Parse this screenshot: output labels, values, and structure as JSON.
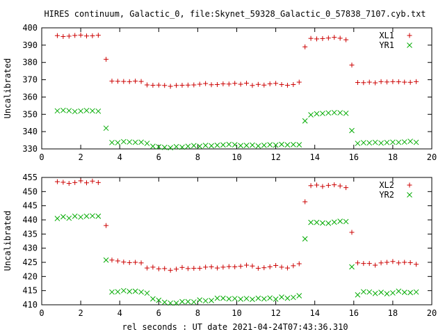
{
  "title": "HIRES continuum, Galactic_0, file:Skynet_59328_Galactic_0_57838_7107.cyb.txt",
  "xlabel": "rel seconds : UT date 2021-04-24T07:43:36.310",
  "chart_data": [
    {
      "type": "scatter",
      "ylabel": "Uncalibrated",
      "xlim": [
        0,
        20
      ],
      "ylim": [
        330,
        400
      ],
      "xticks": [
        0,
        2,
        4,
        6,
        8,
        10,
        12,
        14,
        16,
        18,
        20
      ],
      "yticks": [
        330,
        340,
        350,
        360,
        370,
        380,
        390,
        400
      ],
      "legend_position": "top-right",
      "x": [
        0.8,
        1.1,
        1.4,
        1.7,
        2.0,
        2.3,
        2.6,
        2.9,
        3.3,
        3.6,
        3.9,
        4.2,
        4.5,
        4.8,
        5.1,
        5.4,
        5.7,
        6.0,
        6.3,
        6.6,
        6.9,
        7.2,
        7.5,
        7.8,
        8.1,
        8.4,
        8.7,
        9.0,
        9.3,
        9.6,
        9.9,
        10.2,
        10.5,
        10.8,
        11.1,
        11.4,
        11.7,
        12.0,
        12.3,
        12.6,
        12.9,
        13.2,
        13.5,
        13.8,
        14.1,
        14.4,
        14.7,
        15.0,
        15.3,
        15.6,
        15.9,
        16.2,
        16.5,
        16.8,
        17.1,
        17.4,
        17.7,
        18.0,
        18.3,
        18.6,
        18.9,
        19.2
      ],
      "series": [
        {
          "name": "XL1",
          "color": "#cc0000",
          "marker": "plus",
          "values": [
            395.5,
            395.0,
            395.2,
            395.6,
            395.8,
            395.3,
            395.4,
            395.7,
            381.8,
            369.2,
            369.1,
            369.0,
            368.9,
            369.2,
            369.0,
            367.0,
            366.8,
            366.9,
            366.7,
            366.2,
            366.7,
            366.8,
            366.9,
            367.0,
            367.4,
            367.8,
            367.1,
            367.2,
            367.6,
            367.5,
            367.9,
            367.4,
            368.0,
            366.7,
            367.3,
            366.9,
            367.6,
            367.9,
            367.2,
            366.8,
            367.2,
            368.6,
            389.0,
            393.9,
            393.6,
            393.8,
            394.1,
            394.5,
            394.0,
            393.1,
            378.5,
            368.4,
            368.3,
            368.6,
            368.2,
            368.9,
            368.7,
            368.9,
            368.8,
            368.6,
            368.5,
            368.9
          ]
        },
        {
          "name": "YR1",
          "color": "#00aa00",
          "marker": "x",
          "values": [
            352.0,
            352.3,
            352.1,
            351.6,
            351.9,
            352.2,
            352.0,
            351.8,
            342.0,
            333.7,
            333.6,
            334.2,
            334.0,
            333.8,
            333.9,
            333.2,
            331.5,
            331.2,
            330.9,
            330.7,
            331.3,
            331.0,
            331.5,
            331.9,
            331.5,
            332.0,
            331.8,
            332.1,
            332.3,
            332.6,
            332.4,
            331.9,
            332.0,
            332.2,
            331.7,
            332.1,
            332.4,
            332.2,
            332.6,
            332.3,
            332.5,
            332.4,
            346.2,
            349.7,
            350.3,
            350.5,
            350.8,
            351.0,
            350.9,
            350.6,
            340.6,
            333.2,
            333.6,
            333.5,
            333.8,
            333.4,
            333.7,
            333.9,
            333.8,
            334.0,
            334.4,
            333.8
          ]
        }
      ]
    },
    {
      "type": "scatter",
      "ylabel": "Uncalibrated",
      "xlim": [
        0,
        20
      ],
      "ylim": [
        410,
        455
      ],
      "xticks": [
        0,
        2,
        4,
        6,
        8,
        10,
        12,
        14,
        16,
        18,
        20
      ],
      "yticks": [
        410,
        415,
        420,
        425,
        430,
        435,
        440,
        445,
        450,
        455
      ],
      "legend_position": "top-right",
      "x": [
        0.8,
        1.1,
        1.4,
        1.7,
        2.0,
        2.3,
        2.6,
        2.9,
        3.3,
        3.6,
        3.9,
        4.2,
        4.5,
        4.8,
        5.1,
        5.4,
        5.7,
        6.0,
        6.3,
        6.6,
        6.9,
        7.2,
        7.5,
        7.8,
        8.1,
        8.4,
        8.7,
        9.0,
        9.3,
        9.6,
        9.9,
        10.2,
        10.5,
        10.8,
        11.1,
        11.4,
        11.7,
        12.0,
        12.3,
        12.6,
        12.9,
        13.2,
        13.5,
        13.8,
        14.1,
        14.4,
        14.7,
        15.0,
        15.3,
        15.6,
        15.9,
        16.2,
        16.5,
        16.8,
        17.1,
        17.4,
        17.7,
        18.0,
        18.3,
        18.6,
        18.9,
        19.2
      ],
      "series": [
        {
          "name": "XL2",
          "color": "#cc0000",
          "marker": "plus",
          "values": [
            453.5,
            453.3,
            452.9,
            453.2,
            453.8,
            453.1,
            453.7,
            453.2,
            438.0,
            425.8,
            425.5,
            425.1,
            424.9,
            425.0,
            424.8,
            423.0,
            423.3,
            422.7,
            422.8,
            422.2,
            422.6,
            423.2,
            422.8,
            422.9,
            422.9,
            423.3,
            423.4,
            423.0,
            423.3,
            423.5,
            423.4,
            423.6,
            424.0,
            423.7,
            422.9,
            423.1,
            423.4,
            423.9,
            423.3,
            423.0,
            423.8,
            424.5,
            446.4,
            452.1,
            452.3,
            451.8,
            452.2,
            452.4,
            452.0,
            451.4,
            435.6,
            424.8,
            424.6,
            424.6,
            424.0,
            424.8,
            425.0,
            425.3,
            424.8,
            425.0,
            424.9,
            424.3
          ]
        },
        {
          "name": "YR2",
          "color": "#00aa00",
          "marker": "x",
          "values": [
            440.5,
            441.1,
            440.6,
            441.3,
            441.0,
            441.3,
            441.4,
            441.3,
            425.8,
            414.5,
            414.6,
            415.0,
            414.7,
            414.8,
            414.5,
            414.1,
            412.1,
            411.6,
            410.9,
            410.6,
            410.6,
            411.1,
            411.1,
            411.0,
            411.7,
            411.4,
            411.5,
            412.3,
            412.3,
            412.1,
            412.2,
            412.0,
            412.2,
            411.9,
            412.3,
            412.1,
            412.4,
            412.0,
            412.7,
            412.3,
            412.6,
            413.2,
            433.3,
            439.1,
            439.1,
            438.9,
            438.8,
            439.2,
            439.5,
            439.4,
            423.4,
            413.5,
            414.6,
            414.5,
            414.0,
            414.4,
            413.9,
            414.2,
            414.8,
            414.4,
            414.3,
            414.5
          ]
        }
      ]
    }
  ]
}
